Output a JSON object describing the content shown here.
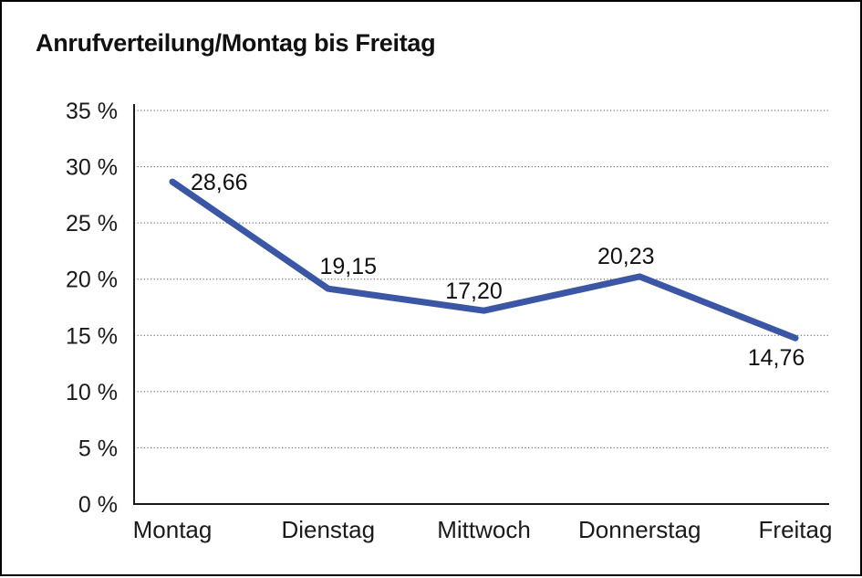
{
  "chart_data": {
    "type": "line",
    "title": "Anrufverteilung/Montag bis Freitag",
    "categories": [
      "Montag",
      "Dienstag",
      "Mittwoch",
      "Donnerstag",
      "Freitag"
    ],
    "values": [
      28.66,
      19.15,
      17.2,
      20.23,
      14.76
    ],
    "data_labels": [
      "28,66",
      "19,15",
      "17,20",
      "20,23",
      "14,76"
    ],
    "xlabel": "",
    "ylabel": "",
    "ylim": [
      0,
      35
    ],
    "y_tick_step": 5,
    "y_tick_labels": [
      "0 %",
      "5 %",
      "10 %",
      "15 %",
      "20 %",
      "25 %",
      "30 %",
      "35 %"
    ],
    "grid": "horizontal-dotted",
    "legend": "none",
    "line_color": "#3A56A4"
  }
}
